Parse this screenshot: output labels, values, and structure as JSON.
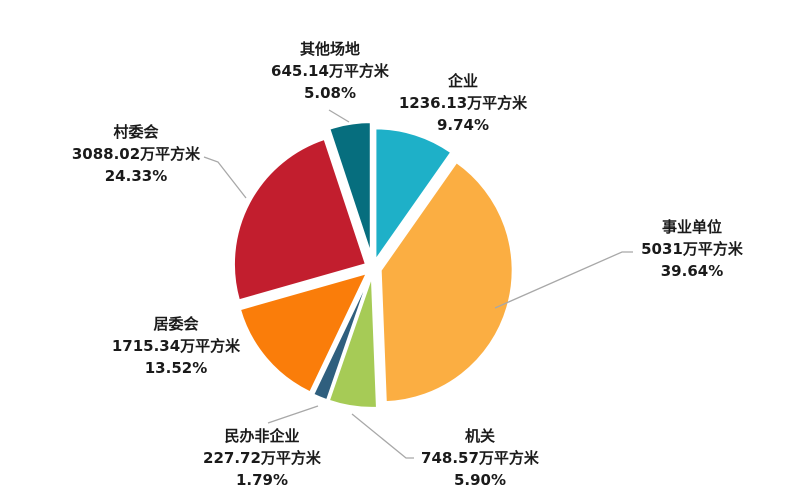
{
  "chart_data": {
    "type": "pie",
    "title": "",
    "unit": "万平方米",
    "background": "#ffffff",
    "label_color": "#1a1a1a",
    "leader_line_color": "#a8a8a8",
    "start_angle_deg": 0,
    "clockwise": true,
    "labels_outside": true,
    "legend": "none",
    "slices": [
      {
        "id": "enterprise",
        "label": "企业",
        "value": 1236.13,
        "value_text": "1236.13万平方米",
        "percent": 9.74,
        "percent_text": "9.74%",
        "color": "#1eb0c8"
      },
      {
        "id": "public-institution",
        "label": "事业单位",
        "value": 5031,
        "value_text": "5031万平方米",
        "percent": 39.64,
        "percent_text": "39.64%",
        "color": "#fbae42"
      },
      {
        "id": "government-agency",
        "label": "机关",
        "value": 748.57,
        "value_text": "748.57万平方米",
        "percent": 5.9,
        "percent_text": "5.90%",
        "color": "#a6cb56"
      },
      {
        "id": "private-non-enterprise",
        "label": "民办非企业",
        "value": 227.72,
        "value_text": "227.72万平方米",
        "percent": 1.79,
        "percent_text": "1.79%",
        "color": "#2f5f7e"
      },
      {
        "id": "residents-committee",
        "label": "居委会",
        "value": 1715.34,
        "value_text": "1715.34万平方米",
        "percent": 13.52,
        "percent_text": "13.52%",
        "color": "#fa7d0a"
      },
      {
        "id": "village-committee",
        "label": "村委会",
        "value": 3088.02,
        "value_text": "3088.02万平方米",
        "percent": 24.33,
        "percent_text": "24.33%",
        "color": "#c21e2e"
      },
      {
        "id": "other-venues",
        "label": "其他场地",
        "value": 645.14,
        "value_text": "645.14万平方米",
        "percent": 5.08,
        "percent_text": "5.08%",
        "color": "#066e7e"
      }
    ]
  }
}
